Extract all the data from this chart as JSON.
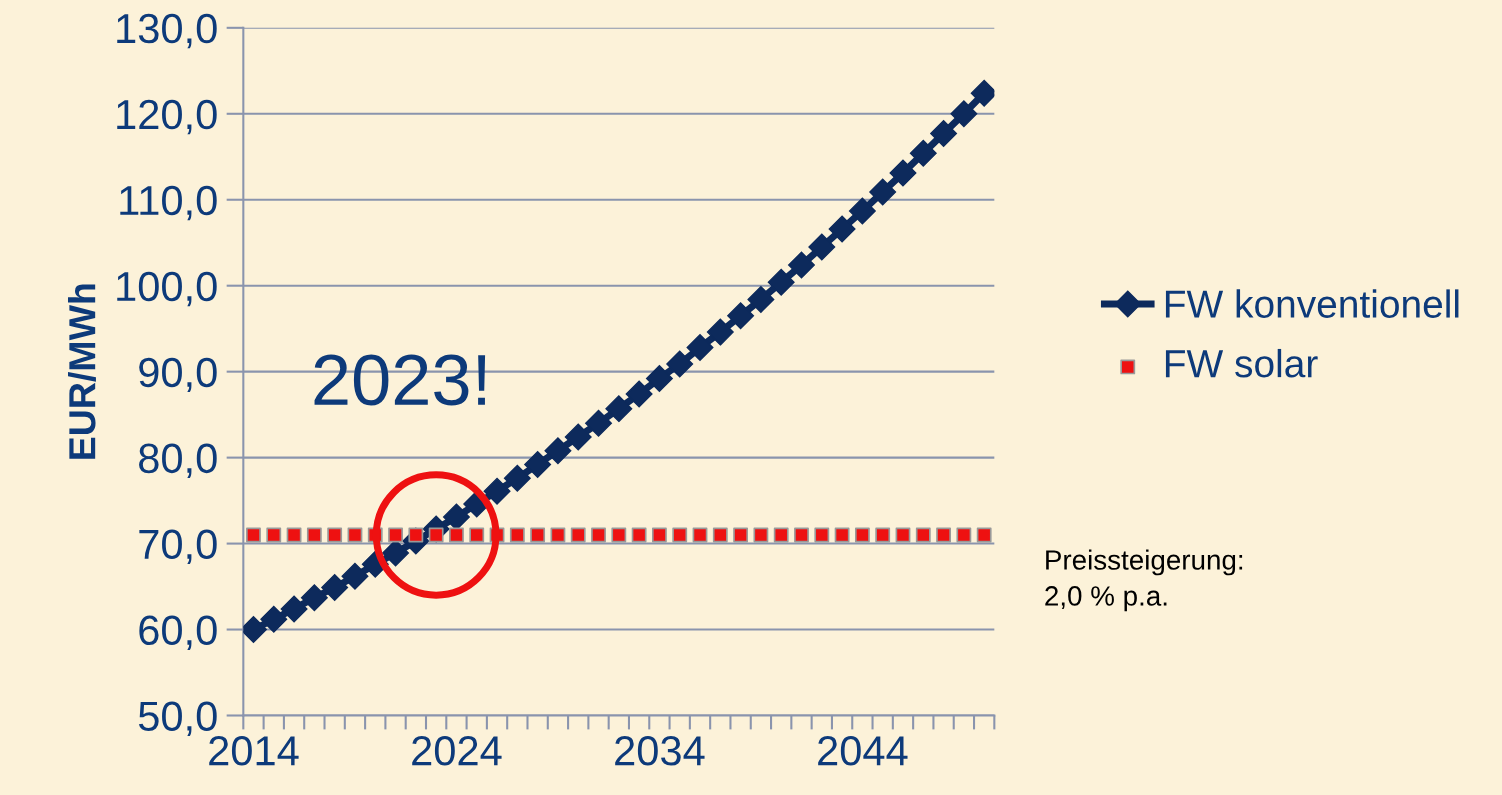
{
  "chart_data": {
    "type": "line",
    "ylabel": "EUR/MWh",
    "categories": [
      "2014",
      null,
      null,
      null,
      null,
      null,
      null,
      null,
      null,
      null,
      "2024",
      null,
      null,
      null,
      null,
      null,
      null,
      null,
      null,
      null,
      "2034",
      null,
      null,
      null,
      null,
      null,
      null,
      null,
      null,
      null,
      "2044",
      null,
      null,
      null,
      null,
      null,
      null
    ],
    "series": [
      {
        "name": "FW konventionell",
        "color": "#0d2a5c",
        "marker": "diamond",
        "values": [
          60.0,
          61.2,
          62.4,
          63.7,
          64.9,
          66.2,
          67.6,
          68.9,
          70.3,
          71.7,
          73.1,
          74.6,
          76.1,
          77.6,
          79.2,
          80.8,
          82.4,
          84.0,
          85.7,
          87.4,
          89.2,
          90.9,
          92.8,
          94.6,
          96.5,
          98.4,
          100.4,
          102.4,
          104.5,
          106.6,
          108.7,
          110.9,
          113.1,
          115.4,
          117.7,
          120.0,
          122.4
        ]
      },
      {
        "name": "FW solar",
        "color": "#ee1111",
        "type": "scatter",
        "marker": "square",
        "values": [
          71,
          71,
          71,
          71,
          71,
          71,
          71,
          71,
          71,
          71,
          71,
          71,
          71,
          71,
          71,
          71,
          71,
          71,
          71,
          71,
          71,
          71,
          71,
          71,
          71,
          71,
          71,
          71,
          71,
          71,
          71,
          71,
          71,
          71,
          71,
          71,
          71
        ]
      }
    ],
    "ylim": [
      50,
      130
    ],
    "yticks": [
      {
        "value": 50,
        "label": "50,0"
      },
      {
        "value": 60,
        "label": "60,0"
      },
      {
        "value": 70,
        "label": "70,0"
      },
      {
        "value": 80,
        "label": "80,0"
      },
      {
        "value": 90,
        "label": "90,0"
      },
      {
        "value": 100,
        "label": "100,0"
      },
      {
        "value": 110,
        "label": "110,0"
      },
      {
        "value": 120,
        "label": "120,0"
      },
      {
        "value": 130,
        "label": "130,0"
      }
    ],
    "grid": "y",
    "legend": "right",
    "annotations": [
      "2023!",
      "Preissteigerung:\n2,0 % p.a."
    ]
  }
}
